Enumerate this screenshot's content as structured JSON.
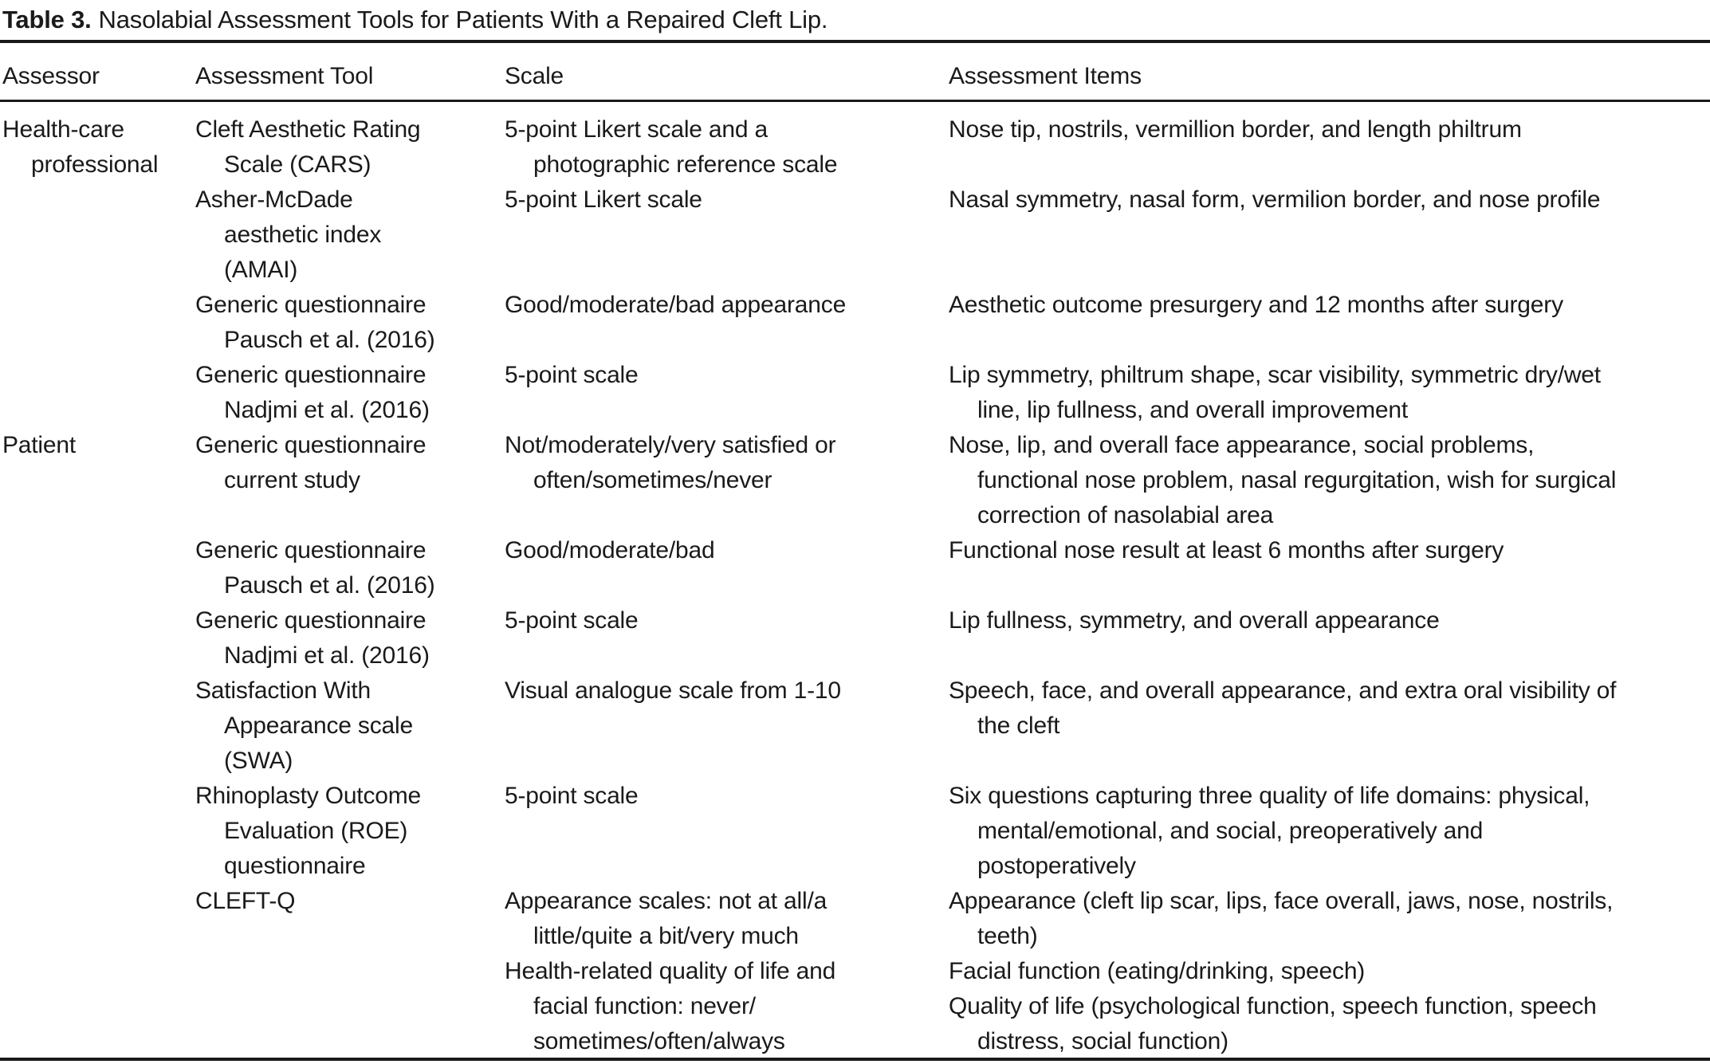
{
  "title": {
    "label": "Table 3.",
    "text": "Nasolabial Assessment Tools for Patients With a Repaired Cleft Lip."
  },
  "table": {
    "columns": [
      "Assessor",
      "Assessment Tool",
      "Scale",
      "Assessment Items"
    ],
    "rows": [
      {
        "assessor": [
          {
            "t": "Health-care",
            "i": 0
          },
          {
            "t": "professional",
            "i": 1
          }
        ],
        "tool": [
          {
            "t": "Cleft Aesthetic Rating",
            "i": 0
          },
          {
            "t": "Scale (CARS)",
            "i": 1
          }
        ],
        "scale": [
          {
            "t": "5-point Likert scale and a",
            "i": 0
          },
          {
            "t": "photographic reference scale",
            "i": 1
          }
        ],
        "items": [
          {
            "t": "Nose tip, nostrils, vermillion border, and length philtrum",
            "i": 0
          }
        ]
      },
      {
        "assessor": [],
        "tool": [
          {
            "t": "Asher-McDade",
            "i": 0
          },
          {
            "t": "aesthetic index",
            "i": 1
          },
          {
            "t": "(AMAI)",
            "i": 1
          }
        ],
        "scale": [
          {
            "t": "5-point Likert scale",
            "i": 0
          }
        ],
        "items": [
          {
            "t": "Nasal symmetry, nasal form, vermilion border, and nose profile",
            "i": 0
          }
        ]
      },
      {
        "assessor": [],
        "tool": [
          {
            "t": "Generic questionnaire",
            "i": 0
          },
          {
            "t": "Pausch et al. (2016)",
            "i": 1
          }
        ],
        "scale": [
          {
            "t": "Good/moderate/bad appearance",
            "i": 0
          }
        ],
        "items": [
          {
            "t": "Aesthetic outcome presurgery and 12 months after surgery",
            "i": 0
          }
        ]
      },
      {
        "assessor": [],
        "tool": [
          {
            "t": "Generic questionnaire",
            "i": 0
          },
          {
            "t": "Nadjmi et al. (2016)",
            "i": 1
          }
        ],
        "scale": [
          {
            "t": "5-point scale",
            "i": 0
          }
        ],
        "items": [
          {
            "t": "Lip symmetry, philtrum shape, scar visibility, symmetric dry/wet",
            "i": 0
          },
          {
            "t": "line, lip fullness, and overall improvement",
            "i": 1
          }
        ]
      },
      {
        "assessor": [
          {
            "t": "Patient",
            "i": 0
          }
        ],
        "tool": [
          {
            "t": "Generic questionnaire",
            "i": 0
          },
          {
            "t": "current study",
            "i": 1
          }
        ],
        "scale": [
          {
            "t": "Not/moderately/very satisfied or",
            "i": 0
          },
          {
            "t": "often/sometimes/never",
            "i": 1
          }
        ],
        "items": [
          {
            "t": "Nose, lip, and overall face appearance, social problems,",
            "i": 0
          },
          {
            "t": "functional nose problem, nasal regurgitation, wish for surgical",
            "i": 1
          },
          {
            "t": "correction of nasolabial area",
            "i": 1
          }
        ]
      },
      {
        "assessor": [],
        "tool": [
          {
            "t": "Generic questionnaire",
            "i": 0
          },
          {
            "t": "Pausch et al. (2016)",
            "i": 1
          }
        ],
        "scale": [
          {
            "t": "Good/moderate/bad",
            "i": 0
          }
        ],
        "items": [
          {
            "t": "Functional nose result at least 6 months after surgery",
            "i": 0
          }
        ]
      },
      {
        "assessor": [],
        "tool": [
          {
            "t": "Generic questionnaire",
            "i": 0
          },
          {
            "t": "Nadjmi et al. (2016)",
            "i": 1
          }
        ],
        "scale": [
          {
            "t": "5-point scale",
            "i": 0
          }
        ],
        "items": [
          {
            "t": "Lip fullness, symmetry, and overall appearance",
            "i": 0
          }
        ]
      },
      {
        "assessor": [],
        "tool": [
          {
            "t": "Satisfaction With",
            "i": 0
          },
          {
            "t": "Appearance scale",
            "i": 1
          },
          {
            "t": "(SWA)",
            "i": 1
          }
        ],
        "scale": [
          {
            "t": "Visual analogue scale from 1-10",
            "i": 0
          }
        ],
        "items": [
          {
            "t": "Speech, face, and overall appearance, and extra oral visibility of",
            "i": 0
          },
          {
            "t": "the cleft",
            "i": 1
          }
        ]
      },
      {
        "assessor": [],
        "tool": [
          {
            "t": "Rhinoplasty Outcome",
            "i": 0
          },
          {
            "t": "Evaluation (ROE)",
            "i": 1
          },
          {
            "t": "questionnaire",
            "i": 1
          }
        ],
        "scale": [
          {
            "t": "5-point scale",
            "i": 0
          }
        ],
        "items": [
          {
            "t": "Six questions capturing three quality of life domains: physical,",
            "i": 0
          },
          {
            "t": "mental/emotional, and social, preoperatively and",
            "i": 1
          },
          {
            "t": "postoperatively",
            "i": 1
          }
        ]
      },
      {
        "assessor": [],
        "tool": [
          {
            "t": "CLEFT-Q",
            "i": 0
          }
        ],
        "scale": [
          {
            "t": "Appearance scales: not at all/a",
            "i": 0
          },
          {
            "t": "little/quite a bit/very much",
            "i": 1
          },
          {
            "t": "Health-related quality of life and",
            "i": 0
          },
          {
            "t": "facial function: never/",
            "i": 1
          },
          {
            "t": "sometimes/often/always",
            "i": 1
          }
        ],
        "items": [
          {
            "t": "Appearance (cleft lip scar, lips, face overall, jaws, nose, nostrils,",
            "i": 0
          },
          {
            "t": "teeth)",
            "i": 1
          },
          {
            "t": "Facial function (eating/drinking, speech)",
            "i": 0
          },
          {
            "t": "Quality of life (psychological function, speech function, speech",
            "i": 0
          },
          {
            "t": "distress, social function)",
            "i": 1
          }
        ]
      }
    ]
  },
  "colors": {
    "text": "#1a1a1a",
    "background": "#ffffff",
    "rule": "#1a1a1a"
  }
}
